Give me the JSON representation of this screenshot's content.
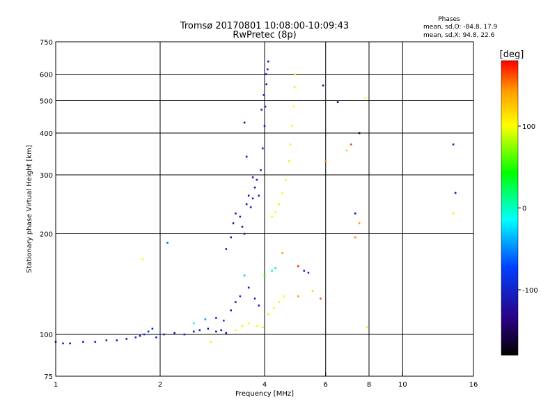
{
  "chart_data": {
    "type": "scatter",
    "title": "Tromsø 20170801 10:08:00-10:09:43",
    "subtitle": "RwPretec (8p)",
    "xlabel": "Frequency [MHz]",
    "ylabel": "Stationary phase Virtual Height [km]",
    "x_scale": "log",
    "y_scale": "log",
    "xlim": [
      1,
      16
    ],
    "ylim": [
      75,
      750
    ],
    "x_ticks": [
      1,
      2,
      4,
      6,
      8,
      10,
      16
    ],
    "y_ticks": [
      75,
      100,
      200,
      300,
      400,
      500,
      600,
      750
    ],
    "x_grid": [
      2,
      4,
      6,
      8,
      10
    ],
    "y_grid": [
      100,
      200,
      300,
      400,
      500,
      600
    ],
    "phase_stats": {
      "heading": "Phases",
      "o_line": "mean, sd,O: -84.8, 17.9",
      "x_line": "mean, sd,X:  94.8, 22.6"
    },
    "colorbar": {
      "label": "[deg]",
      "range": [
        -180,
        180
      ],
      "ticks": [
        100,
        0,
        -100
      ],
      "colormap": "rainbow"
    },
    "series": [
      {
        "points": [
          [
            1.0,
            95,
            -112
          ],
          [
            1.05,
            94,
            -100
          ],
          [
            1.1,
            94,
            -118
          ],
          [
            1.2,
            95,
            -104
          ],
          [
            1.3,
            95,
            -112
          ],
          [
            1.4,
            96,
            -100
          ],
          [
            1.5,
            96,
            -108
          ],
          [
            1.6,
            97,
            -115
          ],
          [
            1.7,
            98,
            -96
          ],
          [
            1.75,
            99,
            -108
          ],
          [
            1.8,
            100,
            -88
          ],
          [
            1.85,
            102,
            -96
          ],
          [
            1.9,
            104,
            -104
          ],
          [
            1.95,
            98,
            -112
          ],
          [
            2.05,
            100,
            -100
          ],
          [
            2.2,
            101,
            -120
          ],
          [
            2.35,
            100,
            -108
          ],
          [
            2.5,
            102,
            -125
          ],
          [
            2.6,
            103,
            -100
          ],
          [
            2.75,
            104,
            -118
          ],
          [
            2.9,
            102,
            -130
          ],
          [
            3.0,
            103,
            -110
          ],
          [
            3.1,
            101,
            -140
          ],
          [
            2.5,
            108,
            -20
          ],
          [
            2.7,
            111,
            -40
          ],
          [
            2.9,
            112,
            -95
          ],
          [
            3.05,
            110,
            -80
          ],
          [
            3.2,
            118,
            -100
          ],
          [
            3.3,
            125,
            -115
          ],
          [
            3.4,
            130,
            -90
          ],
          [
            3.5,
            150,
            -30
          ],
          [
            3.6,
            138,
            -120
          ],
          [
            3.75,
            128,
            -100
          ],
          [
            3.85,
            122,
            -110
          ],
          [
            3.1,
            180,
            -110
          ],
          [
            3.2,
            195,
            -120
          ],
          [
            3.25,
            215,
            -115
          ],
          [
            3.3,
            230,
            -100
          ],
          [
            3.4,
            225,
            -110
          ],
          [
            3.45,
            210,
            -125
          ],
          [
            3.5,
            200,
            -105
          ],
          [
            3.55,
            245,
            -115
          ],
          [
            3.6,
            260,
            -120
          ],
          [
            3.65,
            240,
            -100
          ],
          [
            3.7,
            255,
            -110
          ],
          [
            3.75,
            275,
            -125
          ],
          [
            3.8,
            290,
            -105
          ],
          [
            3.85,
            260,
            -115
          ],
          [
            3.9,
            310,
            -110
          ],
          [
            3.95,
            360,
            -120
          ],
          [
            4.0,
            420,
            -115
          ],
          [
            4.02,
            480,
            -110
          ],
          [
            4.05,
            560,
            -120
          ],
          [
            4.08,
            620,
            -105
          ],
          [
            4.1,
            655,
            -115
          ],
          [
            3.92,
            470,
            -100
          ],
          [
            3.98,
            520,
            -120
          ],
          [
            4.04,
            600,
            -110
          ],
          [
            3.5,
            430,
            -125
          ],
          [
            2.1,
            188,
            -60
          ],
          [
            3.55,
            340,
            -120
          ],
          [
            3.7,
            295,
            -105
          ],
          [
            5.9,
            555,
            -135
          ],
          [
            6.5,
            495,
            -140
          ],
          [
            7.3,
            230,
            -120
          ],
          [
            7.5,
            400,
            -170
          ],
          [
            14.0,
            370,
            -110
          ],
          [
            14.2,
            265,
            -130
          ],
          [
            5.2,
            155,
            -110
          ],
          [
            5.35,
            153,
            -95
          ]
        ]
      },
      {
        "points": [
          [
            3.3,
            103,
            100
          ],
          [
            3.45,
            106,
            110
          ],
          [
            3.6,
            108,
            100
          ],
          [
            3.8,
            106,
            105
          ],
          [
            3.95,
            105,
            90
          ],
          [
            4.1,
            115,
            110
          ],
          [
            4.25,
            120,
            95
          ],
          [
            4.4,
            125,
            105
          ],
          [
            4.55,
            130,
            100
          ],
          [
            4.0,
            150,
            40
          ],
          [
            4.2,
            155,
            -20
          ],
          [
            4.3,
            158,
            20
          ],
          [
            4.2,
            225,
            95
          ],
          [
            4.3,
            232,
            105
          ],
          [
            4.4,
            245,
            110
          ],
          [
            4.5,
            265,
            100
          ],
          [
            4.6,
            290,
            105
          ],
          [
            4.7,
            330,
            110
          ],
          [
            4.75,
            370,
            95
          ],
          [
            4.8,
            420,
            105
          ],
          [
            4.85,
            480,
            100
          ],
          [
            4.88,
            550,
            110
          ],
          [
            4.9,
            600,
            95
          ],
          [
            5.0,
            130,
            140
          ],
          [
            5.5,
            135,
            120
          ],
          [
            5.8,
            128,
            160
          ],
          [
            5.0,
            160,
            170
          ],
          [
            4.5,
            175,
            140
          ],
          [
            6.0,
            330,
            150
          ],
          [
            7.3,
            195,
            150
          ],
          [
            7.5,
            215,
            140
          ],
          [
            6.9,
            355,
            120
          ],
          [
            7.1,
            370,
            165
          ],
          [
            7.8,
            510,
            100
          ],
          [
            7.9,
            105,
            110
          ],
          [
            14.0,
            230,
            110
          ],
          [
            1.78,
            168,
            100
          ],
          [
            2.8,
            95,
            110
          ]
        ]
      }
    ]
  }
}
